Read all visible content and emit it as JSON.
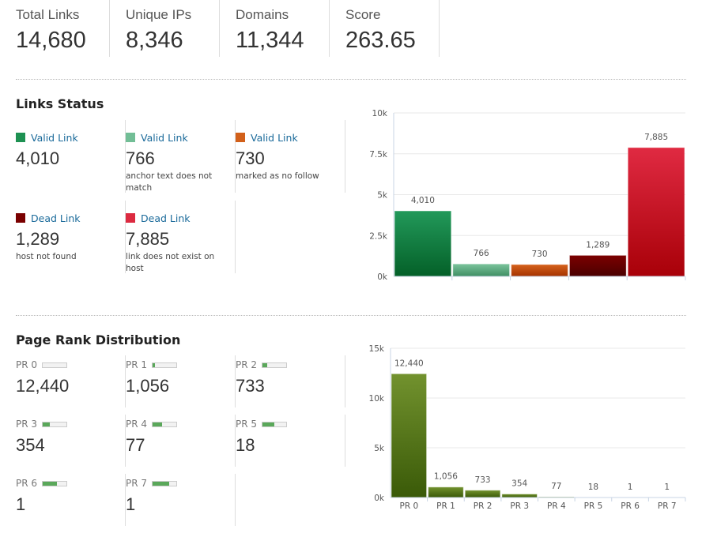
{
  "stats": [
    {
      "label": "Total Links",
      "value": "14,680"
    },
    {
      "label": "Unique IPs",
      "value": "8,346"
    },
    {
      "label": "Domains",
      "value": "11,344"
    },
    {
      "label": "Score",
      "value": "263.65"
    }
  ],
  "links_status": {
    "title": "Links Status",
    "items": [
      {
        "label": "Valid Link",
        "value": "4,010",
        "desc": "",
        "color": "#1e9152"
      },
      {
        "label": "Valid Link",
        "value": "766",
        "desc": "anchor text does not match",
        "color": "#72be96"
      },
      {
        "label": "Valid Link",
        "value": "730",
        "desc": "marked as no follow",
        "color": "#d2601a"
      },
      {
        "label": "Dead Link",
        "value": "1,289",
        "desc": "host not found",
        "color": "#7a0000"
      },
      {
        "label": "Dead Link",
        "value": "7,885",
        "desc": "link does not exist on host",
        "color": "#dc2a40"
      }
    ]
  },
  "page_rank": {
    "title": "Page Rank Distribution",
    "items": [
      {
        "label": "PR 0",
        "value": "12,440",
        "fill": 0
      },
      {
        "label": "PR 1",
        "value": "1,056",
        "fill": 0.1
      },
      {
        "label": "PR 2",
        "value": "733",
        "fill": 0.2
      },
      {
        "label": "PR 3",
        "value": "354",
        "fill": 0.3
      },
      {
        "label": "PR 4",
        "value": "77",
        "fill": 0.4
      },
      {
        "label": "PR 5",
        "value": "18",
        "fill": 0.5
      },
      {
        "label": "PR 6",
        "value": "1",
        "fill": 0.6
      },
      {
        "label": "PR 7",
        "value": "1",
        "fill": 0.7
      }
    ]
  },
  "chart_data": [
    {
      "type": "bar",
      "categories": [
        "Valid Link",
        "Valid Link",
        "Valid Link",
        "Dead Link",
        "Dead Link"
      ],
      "values": [
        4010,
        766,
        730,
        1289,
        7885
      ],
      "data_labels": [
        "4,010",
        "766",
        "730",
        "1,289",
        "7,885"
      ],
      "colors": [
        [
          "#22995a",
          "#046028"
        ],
        [
          "#7cc49d",
          "#3e8e62"
        ],
        [
          "#d6621c",
          "#a43200"
        ],
        [
          "#7c0000",
          "#4a0000"
        ],
        [
          "#e02a42",
          "#a80008"
        ]
      ],
      "ylim": [
        0,
        10000
      ],
      "yticks": [
        "0k",
        "2.5k",
        "5k",
        "7.5k",
        "10k"
      ],
      "grid": true
    },
    {
      "type": "bar",
      "categories": [
        "PR 0",
        "PR 1",
        "PR 2",
        "PR 3",
        "PR 4",
        "PR 5",
        "PR 6",
        "PR 7"
      ],
      "values": [
        12440,
        1056,
        733,
        354,
        77,
        18,
        1,
        1
      ],
      "data_labels": [
        "12,440",
        "1,056",
        "733",
        "354",
        "77",
        "18",
        "1",
        "1"
      ],
      "colors": [
        [
          "#72922e",
          "#3a5a08"
        ]
      ],
      "ylim": [
        0,
        15000
      ],
      "yticks": [
        "0k",
        "5k",
        "10k",
        "15k"
      ],
      "grid": true
    }
  ]
}
